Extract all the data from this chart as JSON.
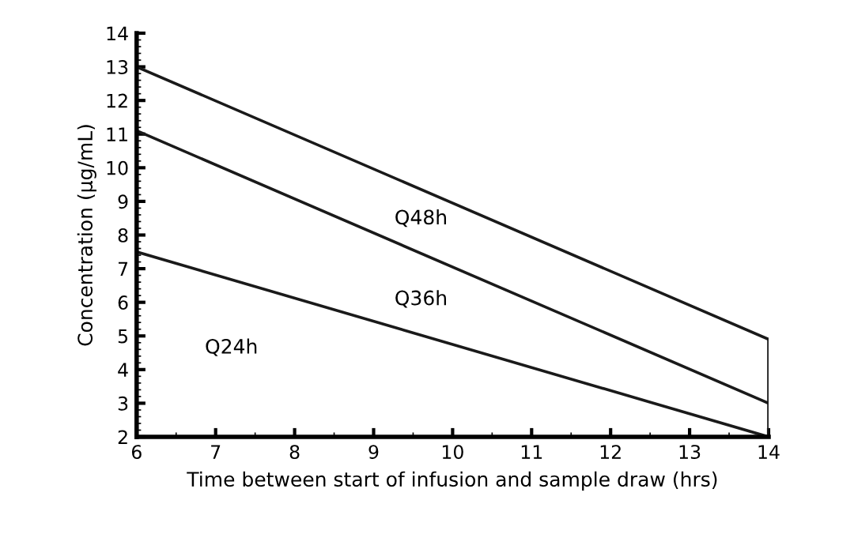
{
  "chart_data": {
    "type": "line",
    "xlabel": "Time between start of infusion and sample draw (hrs)",
    "ylabel": "Concentration (µg/mL)",
    "xlim": [
      6,
      14
    ],
    "ylim": [
      2,
      14
    ],
    "xticks": [
      6,
      7,
      8,
      9,
      10,
      11,
      12,
      13,
      14
    ],
    "yticks": [
      2,
      3,
      4,
      5,
      6,
      7,
      8,
      9,
      10,
      11,
      12,
      13,
      14
    ],
    "x": [
      6,
      14
    ],
    "grid": false,
    "legend": false,
    "marker": "none",
    "line_style": "solid",
    "series": [
      {
        "color": "#1a1a1a",
        "values": [
          13,
          4.9
        ]
      },
      {
        "color": "#1a1a1a",
        "values": [
          11.1,
          3.0
        ]
      },
      {
        "color": "#1a1a1a",
        "values": [
          7.5,
          2.0
        ]
      },
      {
        "color": "#1a1a1a",
        "x": [
          14,
          14
        ],
        "values": [
          2.0,
          4.9
        ]
      }
    ],
    "annotations": [
      "Q48h",
      "Q36h",
      "Q24h"
    ]
  }
}
